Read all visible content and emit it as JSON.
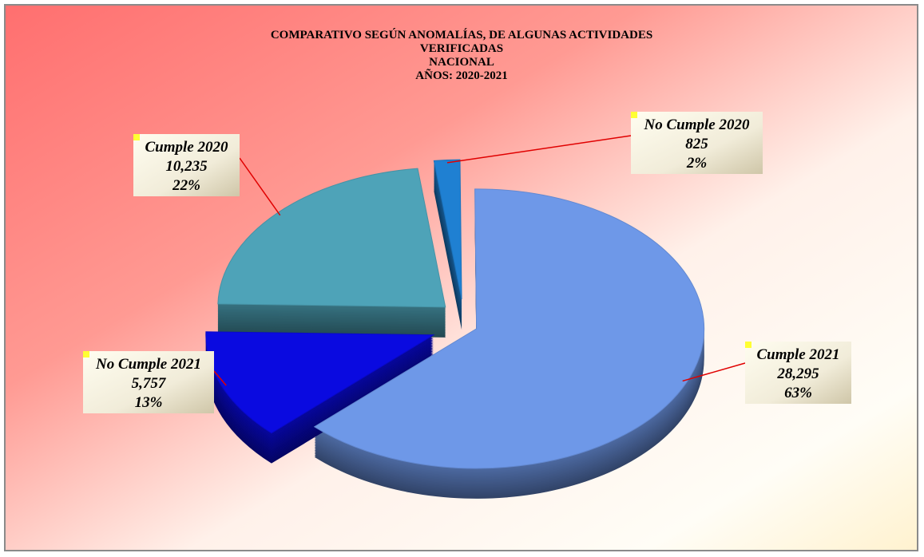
{
  "chart_data": {
    "type": "pie3d",
    "title": [
      "COMPARATIVO SEGÚN ANOMALÍAS, DE ALGUNAS ACTIVIDADES",
      "VERIFICADAS",
      "NACIONAL",
      "AÑOS: 2020-2021"
    ],
    "categories": [
      "No Cumple 2020",
      "Cumple 2021",
      "No Cumple 2021",
      "Cumple 2020"
    ],
    "values": [
      825,
      28295,
      5757,
      10235
    ],
    "value_labels": [
      "825",
      "28,295",
      "5,757",
      "10,235"
    ],
    "percentages": [
      2,
      63,
      13,
      22
    ],
    "percentage_labels": [
      "2%",
      "63%",
      "13%",
      "22%"
    ],
    "colors": [
      "#1f80d2",
      "#6e98e8",
      "#0a0ae0",
      "#4ea3b8"
    ]
  }
}
